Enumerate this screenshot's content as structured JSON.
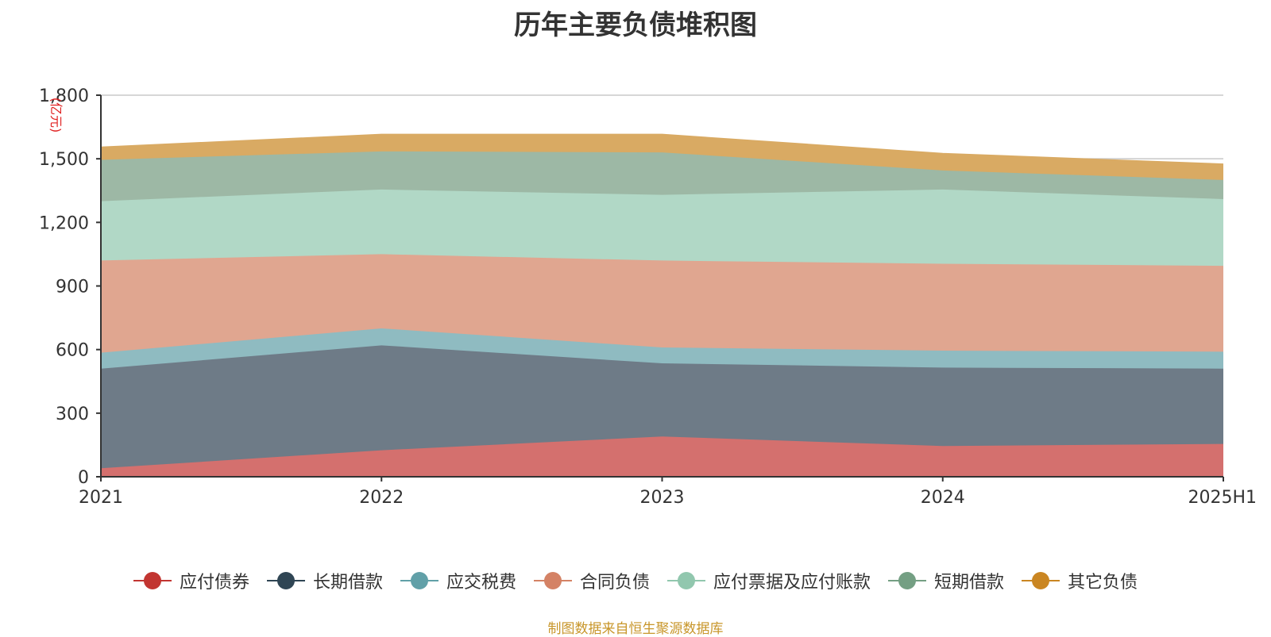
{
  "chart_data": {
    "type": "area",
    "stacked": true,
    "title": "历年主要负债堆积图",
    "unit": "(亿元)",
    "xlabel": "",
    "ylabel": "",
    "categories": [
      "2021",
      "2022",
      "2023",
      "2024",
      "2025H1"
    ],
    "ylim": [
      0,
      1800
    ],
    "yticks": [
      0,
      300,
      600,
      900,
      1200,
      1500,
      1800
    ],
    "ytick_labels": [
      "0",
      "300",
      "600",
      "900",
      "1,200",
      "1,500",
      "1,800"
    ],
    "grid": true,
    "legend_position": "bottom",
    "series": [
      {
        "name": "应付债券",
        "color": "#c23531",
        "fill": "#d4706e",
        "values": [
          40,
          125,
          190,
          145,
          155
        ]
      },
      {
        "name": "长期借款",
        "color": "#2f4554",
        "fill": "#6e7b87",
        "values": [
          470,
          495,
          345,
          370,
          355
        ]
      },
      {
        "name": "应交税费",
        "color": "#61a0a8",
        "fill": "#8fbbc1",
        "values": [
          75,
          80,
          75,
          80,
          80
        ]
      },
      {
        "name": "合同负债",
        "color": "#d48265",
        "fill": "#e0a690",
        "values": [
          435,
          350,
          410,
          410,
          405
        ]
      },
      {
        "name": "应付票据及应付账款",
        "color": "#91c7ae",
        "fill": "#b1d8c6",
        "values": [
          280,
          305,
          310,
          350,
          315
        ]
      },
      {
        "name": "短期借款",
        "color": "#749f83",
        "fill": "#9db8a5",
        "values": [
          195,
          180,
          200,
          90,
          90
        ]
      },
      {
        "name": "其它负债",
        "color": "#ca8622",
        "fill": "#d9aa63",
        "values": [
          60,
          80,
          85,
          80,
          75
        ]
      }
    ],
    "source": "制图数据来自恒生聚源数据库"
  }
}
